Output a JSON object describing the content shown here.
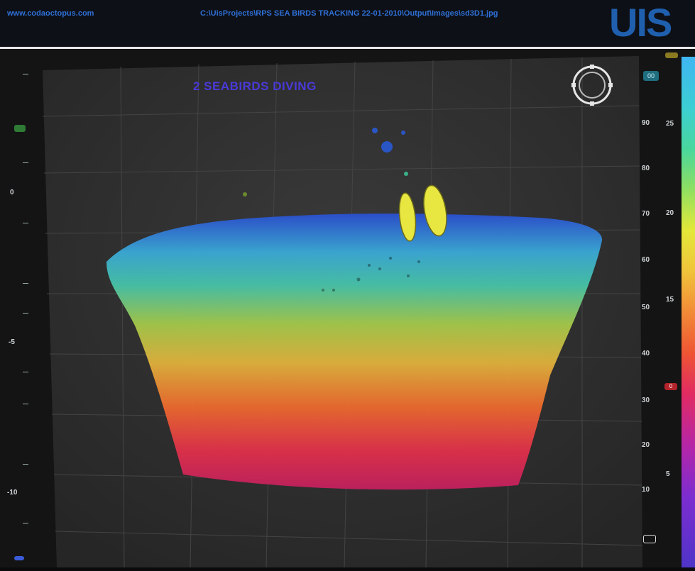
{
  "header": {
    "site": "www.codaoctopus.com",
    "path": "C:\\UisProjects\\RPS SEA BIRDS TRACKING 22-01-2010\\Output\\Images\\sd3D1.jpg",
    "logo": "UIS"
  },
  "annotation": "2 SEABIRDS DIVING",
  "left_scale": [
    "0",
    "-5",
    "-10"
  ],
  "right_scale_depth": [
    "90",
    "80",
    "70",
    "60",
    "50",
    "40",
    "30",
    "20",
    "10"
  ],
  "right_scale_color": [
    "25",
    "20",
    "15",
    "5"
  ],
  "marker": {
    "top_badge": "00",
    "red_badge": "0"
  },
  "colors": {
    "background": "#141414",
    "accent": "#2f6fd6",
    "label": "#4a3ad8",
    "bird": "#e8e640"
  }
}
